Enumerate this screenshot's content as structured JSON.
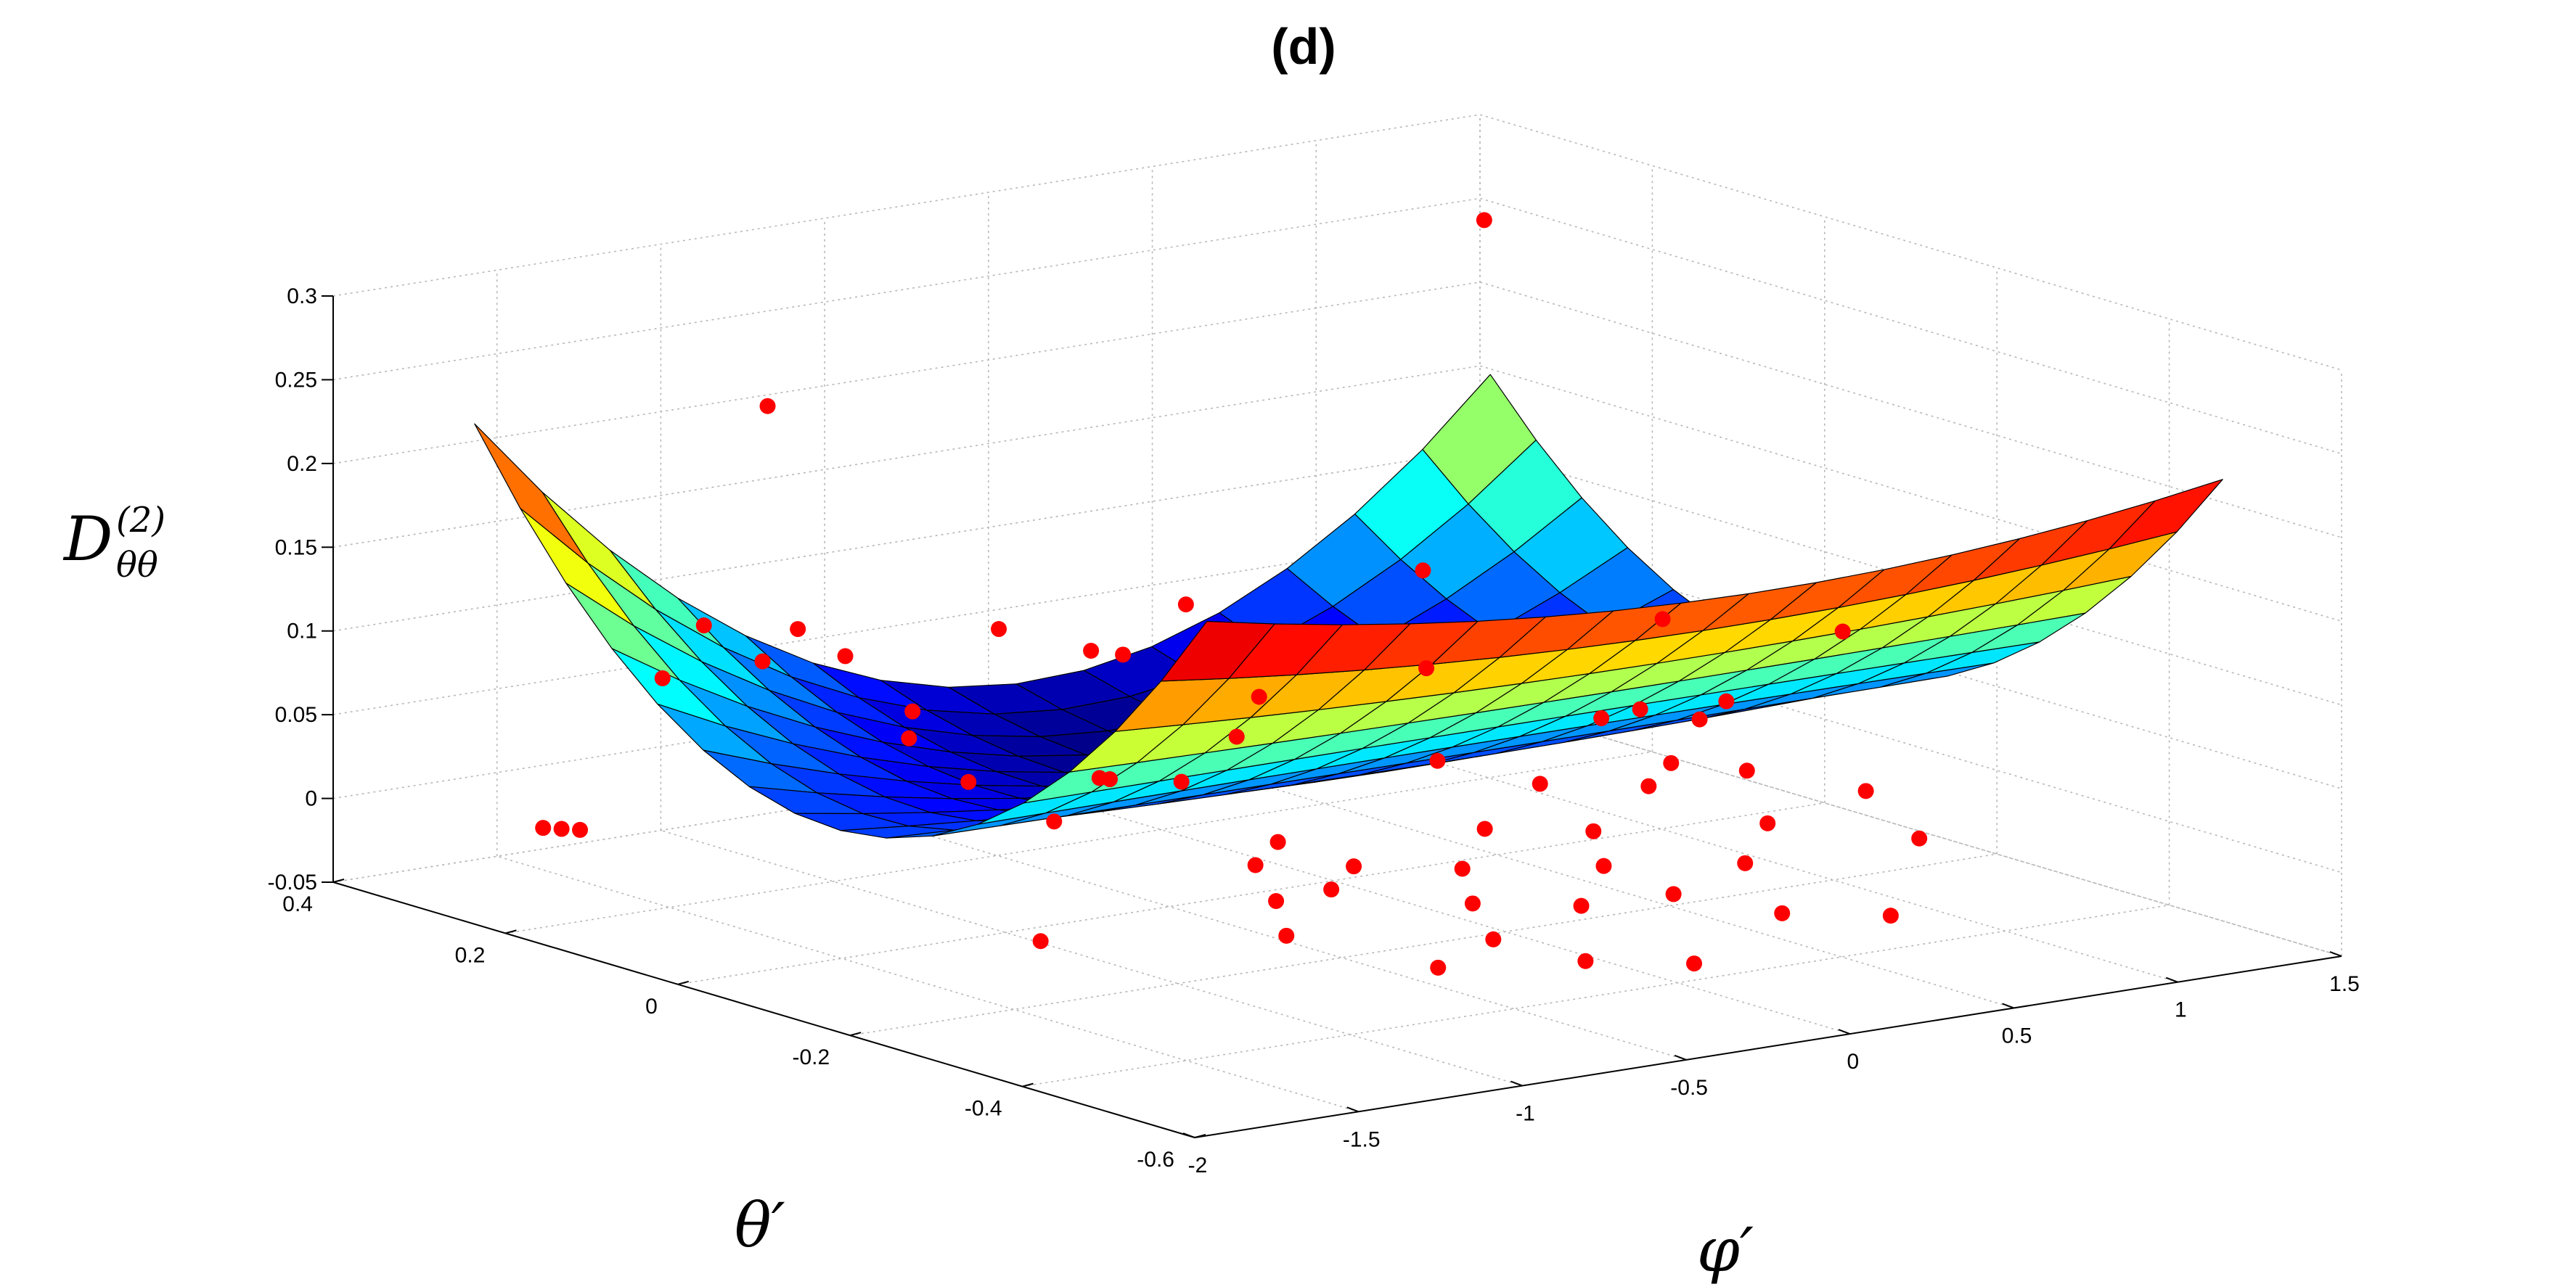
{
  "chart_data": {
    "type": "surface3d",
    "title": "(d)",
    "xlabel": "φ′",
    "ylabel": "θ′",
    "zlabel_main": "D",
    "zlabel_sup": "(2)",
    "zlabel_sub": "θθ",
    "xlim": [
      -2,
      1.5
    ],
    "ylim": [
      -0.6,
      0.4
    ],
    "zlim": [
      -0.05,
      0.3
    ],
    "x_ticks": [
      -2,
      -1.5,
      -1,
      -0.5,
      0,
      0.5,
      1,
      1.5
    ],
    "x_tick_labels": [
      "-2",
      "-1.5",
      "-1",
      "-0.5",
      "0",
      "0.5",
      "1",
      "1.5"
    ],
    "y_ticks": [
      -0.6,
      -0.4,
      -0.2,
      0,
      0.2,
      0.4
    ],
    "y_tick_labels": [
      "-0.6",
      "-0.4",
      "-0.2",
      "0",
      "0.2",
      "0.4"
    ],
    "z_ticks": [
      -0.05,
      0,
      0.05,
      0.1,
      0.15,
      0.2,
      0.25,
      0.3
    ],
    "z_tick_labels": [
      "-0.05",
      "0",
      "0.05",
      "0.1",
      "0.15",
      "0.2",
      "0.25",
      "0.3"
    ],
    "grid": true,
    "colormap": "jet",
    "surface": {
      "description": "fitted quadratic surface z = 0.2 * phi^2 * theta^2 + 0.1 * phi^2 * theta + 0.44 * theta^2 + 0.012 * phi^2 - 0.15 * theta + 0.014",
      "coefficients": {
        "phi2_theta2": 0.2,
        "phi2_theta": 0.1,
        "theta2": 0.44,
        "phi2": 0.012,
        "theta": -0.15,
        "const": 0.014
      },
      "phi_range": [
        -1.7,
        1.4
      ],
      "theta_range": [
        -0.5,
        0.35
      ],
      "phi_cells": 15,
      "theta_cells": 16
    },
    "scatter": [
      [
        -1.72,
        0.22,
        0.0
      ],
      [
        -1.75,
        0.23,
        0.0
      ],
      [
        -1.78,
        0.24,
        0.0
      ],
      [
        -1.55,
        -0.25,
        0.0
      ],
      [
        -1.1,
        0.36,
        0.05
      ],
      [
        -1.0,
        0.35,
        0.08
      ],
      [
        -0.9,
        0.32,
        0.06
      ],
      [
        -1.2,
        0.2,
        0.24
      ],
      [
        -0.95,
        0.26,
        0.09
      ],
      [
        -0.7,
        0.3,
        0.06
      ],
      [
        -0.6,
        0.26,
        0.03
      ],
      [
        -0.9,
        0.15,
        0.04
      ],
      [
        -0.85,
        0.1,
        0.02
      ],
      [
        -0.72,
        0.05,
        0.0
      ],
      [
        -0.55,
        0.05,
        0.02
      ],
      [
        -0.45,
        0.1,
        0.01
      ],
      [
        -0.1,
        0.35,
        0.05
      ],
      [
        0.05,
        0.3,
        0.04
      ],
      [
        0.2,
        0.32,
        0.03
      ],
      [
        0.55,
        0.38,
        0.04
      ],
      [
        1.25,
        0.3,
        0.26
      ],
      [
        0.8,
        0.2,
        0.08
      ],
      [
        0.6,
        0.12,
        0.04
      ],
      [
        1.2,
        0.0,
        0.02
      ],
      [
        1.0,
        -0.1,
        0.0
      ],
      [
        0.9,
        -0.05,
        0.0
      ],
      [
        1.2,
        0.1,
        0.0
      ],
      [
        1.25,
        0.05,
        0.0
      ],
      [
        1.45,
        -0.04,
        0.06
      ],
      [
        1.4,
        0.15,
        0.04
      ],
      [
        -0.5,
        -0.1,
        -0.01
      ],
      [
        -0.4,
        -0.15,
        -0.02
      ],
      [
        -0.3,
        -0.05,
        -0.01
      ],
      [
        -0.2,
        -0.1,
        -0.02
      ],
      [
        -0.1,
        -0.2,
        -0.03
      ],
      [
        0.0,
        -0.15,
        -0.02
      ],
      [
        0.1,
        -0.25,
        -0.03
      ],
      [
        0.2,
        -0.1,
        -0.01
      ],
      [
        0.3,
        -0.2,
        -0.02
      ],
      [
        0.4,
        -0.15,
        -0.01
      ],
      [
        0.5,
        -0.05,
        0.0
      ],
      [
        0.6,
        -0.25,
        -0.02
      ],
      [
        0.7,
        -0.1,
        0.0
      ],
      [
        0.8,
        -0.2,
        -0.01
      ],
      [
        -0.3,
        -0.3,
        -0.03
      ],
      [
        -0.15,
        -0.35,
        -0.04
      ],
      [
        0.05,
        -0.4,
        -0.04
      ],
      [
        0.25,
        -0.3,
        -0.02
      ],
      [
        0.45,
        -0.35,
        -0.03
      ],
      [
        0.65,
        -0.4,
        -0.03
      ],
      [
        -0.7,
        -0.2,
        -0.01
      ],
      [
        -0.8,
        -0.25,
        -0.02
      ],
      [
        -0.6,
        -0.35,
        -0.03
      ],
      [
        1.0,
        -0.3,
        -0.01
      ],
      [
        1.1,
        -0.2,
        0.0
      ],
      [
        0.3,
        0.2,
        0.02
      ],
      [
        0.1,
        0.15,
        0.01
      ],
      [
        -0.2,
        0.1,
        0.0
      ],
      [
        0.45,
        0.05,
        0.0
      ],
      [
        0.95,
        0.05,
        0.01
      ]
    ]
  }
}
